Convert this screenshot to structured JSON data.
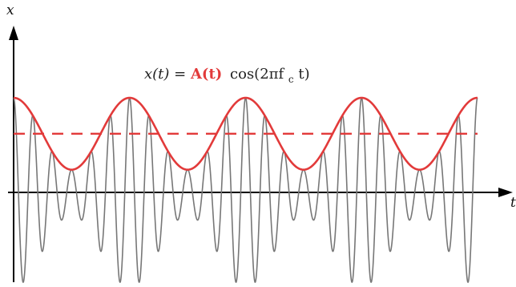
{
  "chart_data": {
    "type": "line",
    "title": "",
    "formula": {
      "lhs": "x(t) = ",
      "amplitude": "A(t)",
      "rhs": "cos(2πf",
      "sub": "c",
      "tail": "t)"
    },
    "xlabel": "t",
    "ylabel": "x",
    "grid": false,
    "legend": "none",
    "carrier_cycles": 24,
    "envelope_cycles": 4,
    "amplitude_mean": 0.62,
    "amplitude_swing": 0.38,
    "ylim": [
      -1.0,
      1.0
    ],
    "xlim": [
      0,
      1
    ],
    "series": [
      {
        "role": "signal",
        "color": "#777777",
        "style": "solid"
      },
      {
        "role": "envelope",
        "color": "#e23a3a",
        "style": "solid"
      },
      {
        "role": "mean-amplitude",
        "color": "#e23a3a",
        "style": "dashed"
      }
    ]
  }
}
